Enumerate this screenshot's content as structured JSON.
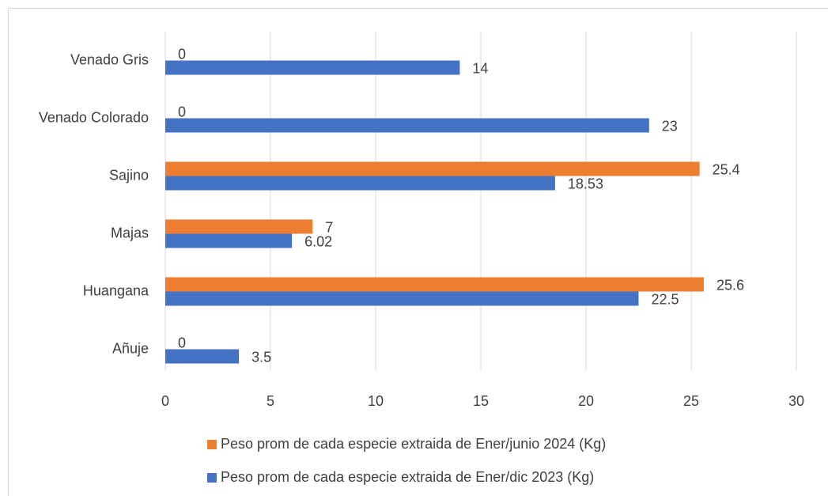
{
  "chart_data": {
    "type": "barh",
    "categories": [
      "Venado Gris",
      "Venado Colorado",
      "Sajino",
      "Majas",
      "Huangana",
      "Añuje"
    ],
    "series": [
      {
        "name": "Peso prom de cada especie extraida de Ener/junio 2024 (Kg)",
        "color": "#ed7d31",
        "values": [
          0,
          0,
          25.4,
          7,
          25.6,
          0
        ]
      },
      {
        "name": "Peso prom de cada especie extraida de Ener/dic 2023 (Kg)",
        "color": "#4472c4",
        "values": [
          14,
          23,
          18.53,
          6.02,
          22.5,
          3.5
        ]
      }
    ],
    "xlim": [
      0,
      30
    ],
    "xticks": [
      0,
      5,
      10,
      15,
      20,
      25,
      30
    ],
    "grid": true,
    "legend": "bottom"
  }
}
